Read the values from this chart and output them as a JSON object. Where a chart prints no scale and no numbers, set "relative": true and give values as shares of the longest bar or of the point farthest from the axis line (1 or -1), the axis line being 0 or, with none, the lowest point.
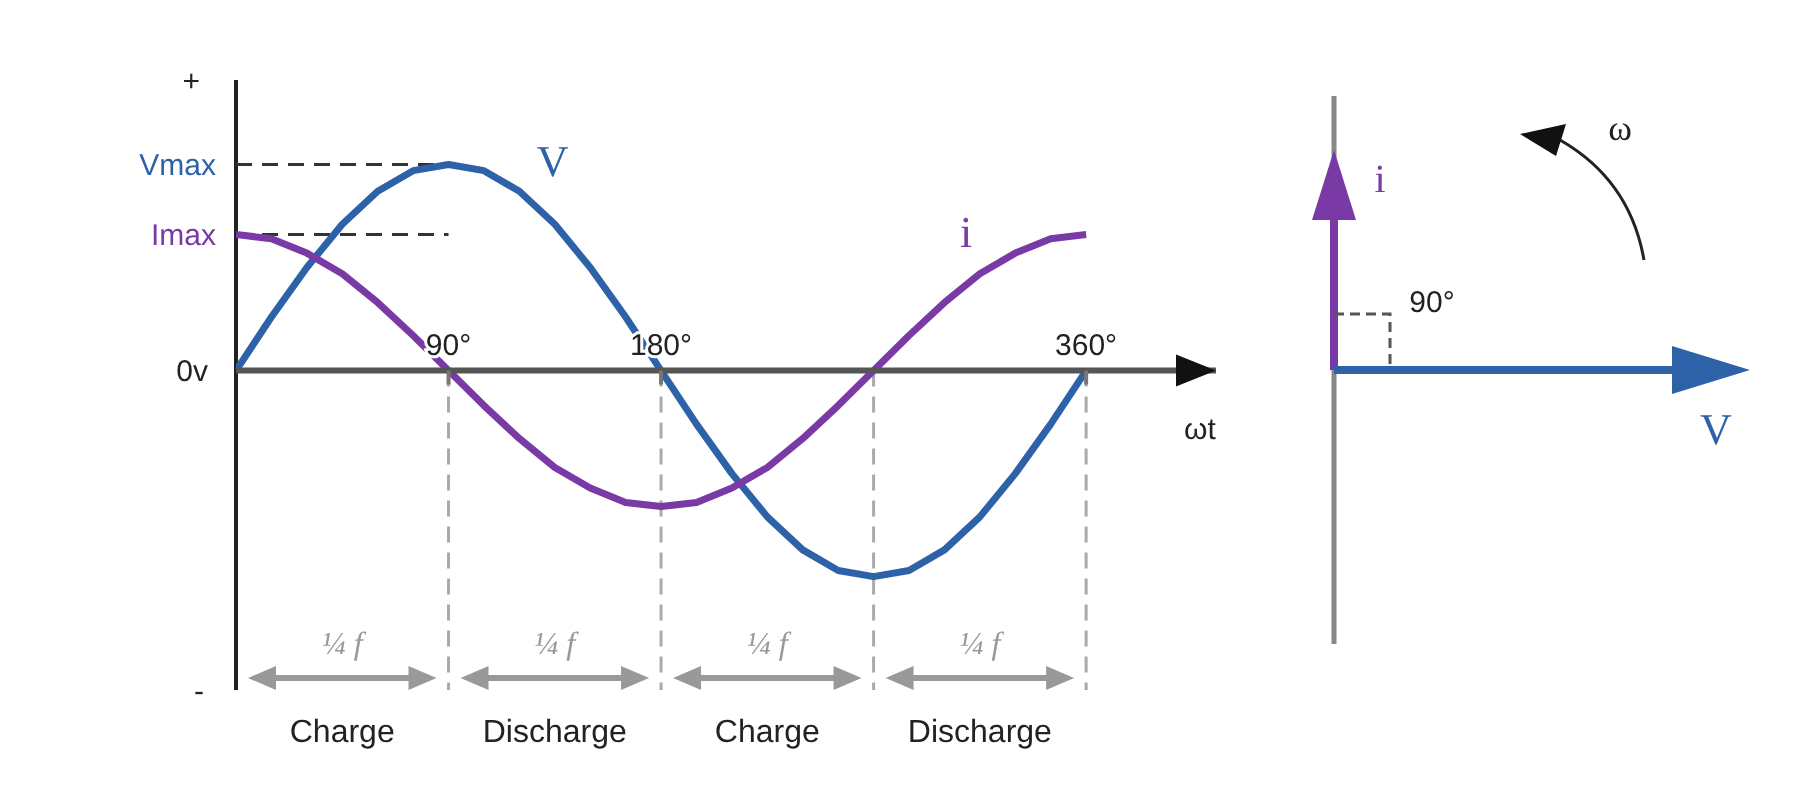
{
  "chart_data": [
    {
      "type": "line",
      "relative": true,
      "x": [
        0,
        15,
        30,
        45,
        60,
        75,
        90,
        105,
        120,
        135,
        150,
        165,
        180,
        195,
        210,
        225,
        240,
        255,
        270,
        285,
        300,
        315,
        330,
        345,
        360
      ],
      "series": [
        {
          "name": "V",
          "color": "#2e62a8",
          "values": [
            0,
            0.26,
            0.5,
            0.71,
            0.87,
            0.97,
            1,
            0.97,
            0.87,
            0.71,
            0.5,
            0.26,
            0,
            -0.26,
            -0.5,
            -0.71,
            -0.87,
            -0.97,
            -1,
            -0.97,
            -0.87,
            -0.71,
            -0.5,
            -0.26,
            0
          ]
        },
        {
          "name": "i",
          "color": "#7a3aa6",
          "values": [
            0.66,
            0.64,
            0.57,
            0.47,
            0.33,
            0.17,
            0,
            -0.17,
            -0.33,
            -0.47,
            -0.57,
            -0.64,
            -0.66,
            -0.64,
            -0.57,
            -0.47,
            -0.33,
            -0.17,
            0,
            0.17,
            0.33,
            0.47,
            0.57,
            0.64,
            0.66
          ]
        }
      ],
      "xlim": [
        0,
        415
      ],
      "xticks": [
        {
          "value": 90,
          "label": "90°"
        },
        {
          "value": 180,
          "label": "180°"
        },
        {
          "value": 360,
          "label": "360°"
        }
      ],
      "xlabel": "ωt",
      "ref_lines": [
        {
          "axis": "y",
          "value": 1,
          "label": "Vmax",
          "color": "#333333",
          "line_style": "dashed"
        },
        {
          "axis": "y",
          "value": 0.66,
          "label": "Imax",
          "color": "#333333",
          "line_style": "dashed"
        },
        {
          "axis": "x",
          "value": 90,
          "color": "#aaaaaa",
          "line_style": "dashed"
        },
        {
          "axis": "x",
          "value": 180,
          "color": "#aaaaaa",
          "line_style": "dashed"
        },
        {
          "axis": "x",
          "value": 270,
          "color": "#aaaaaa",
          "line_style": "dashed"
        },
        {
          "axis": "x",
          "value": 360,
          "color": "#aaaaaa",
          "line_style": "dashed"
        }
      ],
      "marker": "none",
      "annotations": [
        "¼ f",
        "¼ f",
        "¼ f",
        "¼ f",
        "Charge",
        "Discharge",
        "Charge",
        "Discharge",
        "0v",
        "+",
        "-"
      ]
    },
    {
      "type": "other",
      "annotations": [
        "i",
        "90°",
        "ω",
        "V"
      ]
    }
  ]
}
